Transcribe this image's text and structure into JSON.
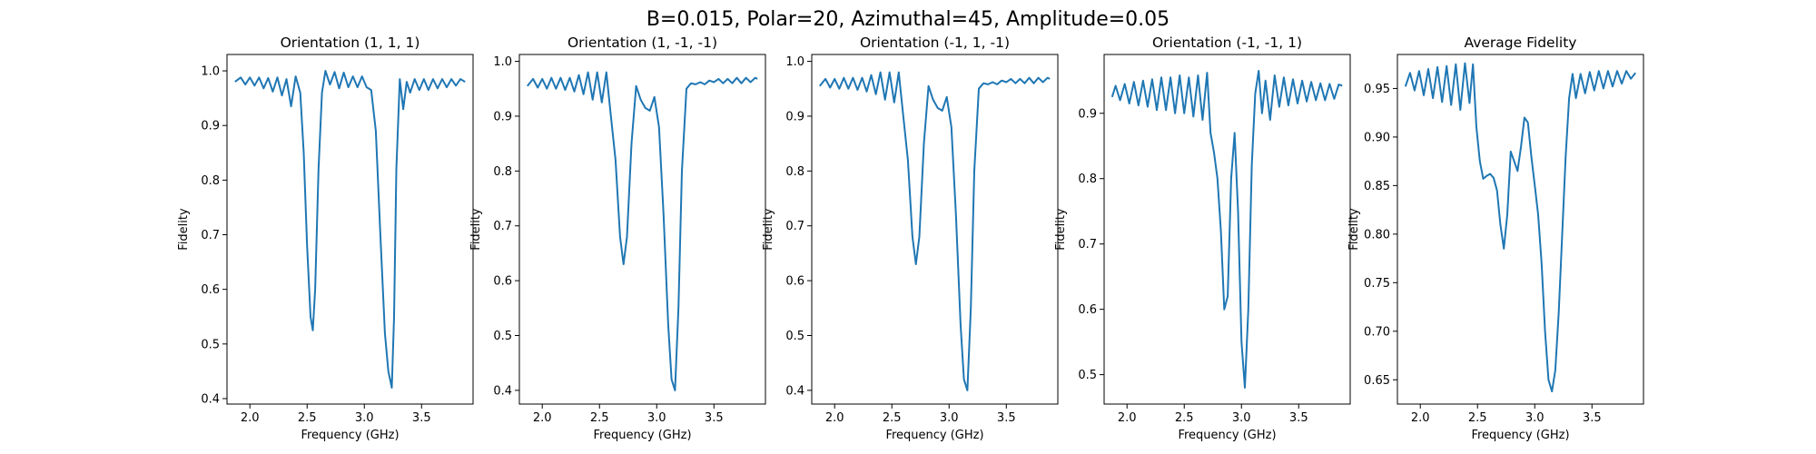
{
  "figure": {
    "suptitle": "B=0.015, Polar=20, Azimuthal=45, Amplitude=0.05"
  },
  "chart_data": [
    {
      "type": "line",
      "title": "Orientation (1, 1, 1)",
      "xlabel": "Frequency (GHz)",
      "ylabel": "Fidelity",
      "xlim": [
        1.8,
        3.95
      ],
      "ylim": [
        0.39,
        1.03
      ],
      "xticks": [
        2.0,
        2.5,
        3.0,
        3.5
      ],
      "yticks": [
        0.4,
        0.5,
        0.6,
        0.7,
        0.8,
        0.9,
        1.0
      ],
      "line_color": "#1f77b4",
      "series": [
        {
          "x": [
            1.87,
            1.92,
            1.96,
            2.0,
            2.04,
            2.08,
            2.12,
            2.16,
            2.2,
            2.24,
            2.28,
            2.32,
            2.36,
            2.4,
            2.44,
            2.47,
            2.5,
            2.53,
            2.55,
            2.57,
            2.6,
            2.63,
            2.66,
            2.7,
            2.74,
            2.78,
            2.82,
            2.86,
            2.9,
            2.94,
            2.98,
            3.02,
            3.06,
            3.1,
            3.14,
            3.18,
            3.21,
            3.24,
            3.26,
            3.28,
            3.31,
            3.34,
            3.37,
            3.4,
            3.44,
            3.48,
            3.52,
            3.56,
            3.6,
            3.64,
            3.68,
            3.72,
            3.76,
            3.8,
            3.84,
            3.88
          ],
          "y": [
            0.98,
            0.988,
            0.975,
            0.988,
            0.973,
            0.988,
            0.968,
            0.987,
            0.962,
            0.988,
            0.955,
            0.985,
            0.935,
            0.99,
            0.96,
            0.85,
            0.68,
            0.55,
            0.525,
            0.6,
            0.82,
            0.96,
            1.0,
            0.975,
            0.998,
            0.968,
            0.997,
            0.97,
            0.99,
            0.97,
            0.99,
            0.97,
            0.965,
            0.89,
            0.7,
            0.52,
            0.45,
            0.42,
            0.55,
            0.82,
            0.985,
            0.93,
            0.98,
            0.96,
            0.985,
            0.965,
            0.985,
            0.965,
            0.985,
            0.968,
            0.985,
            0.97,
            0.985,
            0.973,
            0.985,
            0.98
          ]
        }
      ]
    },
    {
      "type": "line",
      "title": "Orientation (1, -1, -1)",
      "xlabel": "Frequency (GHz)",
      "ylabel": "Fidelity",
      "xlim": [
        1.8,
        3.95
      ],
      "ylim": [
        0.375,
        1.0125
      ],
      "xticks": [
        2.0,
        2.5,
        3.0,
        3.5
      ],
      "yticks": [
        0.4,
        0.5,
        0.6,
        0.7,
        0.8,
        0.9,
        1.0
      ],
      "line_color": "#1f77b4",
      "series": [
        {
          "x": [
            1.87,
            1.92,
            1.96,
            2.0,
            2.04,
            2.08,
            2.12,
            2.16,
            2.2,
            2.24,
            2.28,
            2.32,
            2.36,
            2.4,
            2.44,
            2.48,
            2.52,
            2.56,
            2.6,
            2.64,
            2.68,
            2.71,
            2.74,
            2.78,
            2.82,
            2.86,
            2.9,
            2.94,
            2.98,
            3.02,
            3.06,
            3.1,
            3.13,
            3.16,
            3.19,
            3.22,
            3.26,
            3.3,
            3.34,
            3.38,
            3.42,
            3.46,
            3.5,
            3.54,
            3.58,
            3.62,
            3.66,
            3.7,
            3.74,
            3.78,
            3.82,
            3.86,
            3.88
          ],
          "y": [
            0.955,
            0.968,
            0.952,
            0.968,
            0.95,
            0.97,
            0.95,
            0.97,
            0.948,
            0.97,
            0.945,
            0.975,
            0.94,
            0.98,
            0.93,
            0.98,
            0.925,
            0.98,
            0.9,
            0.82,
            0.68,
            0.63,
            0.68,
            0.85,
            0.955,
            0.93,
            0.915,
            0.91,
            0.935,
            0.88,
            0.72,
            0.52,
            0.42,
            0.4,
            0.55,
            0.8,
            0.95,
            0.96,
            0.958,
            0.962,
            0.958,
            0.965,
            0.962,
            0.968,
            0.96,
            0.968,
            0.96,
            0.97,
            0.96,
            0.97,
            0.962,
            0.97,
            0.968
          ]
        }
      ]
    },
    {
      "type": "line",
      "title": "Orientation (-1, 1, -1)",
      "xlabel": "Frequency (GHz)",
      "ylabel": "Fidelity",
      "xlim": [
        1.8,
        3.95
      ],
      "ylim": [
        0.375,
        1.0125
      ],
      "xticks": [
        2.0,
        2.5,
        3.0,
        3.5
      ],
      "yticks": [
        0.4,
        0.5,
        0.6,
        0.7,
        0.8,
        0.9,
        1.0
      ],
      "line_color": "#1f77b4",
      "series": [
        {
          "x": [
            1.87,
            1.92,
            1.96,
            2.0,
            2.04,
            2.08,
            2.12,
            2.16,
            2.2,
            2.24,
            2.28,
            2.32,
            2.36,
            2.4,
            2.44,
            2.48,
            2.52,
            2.56,
            2.6,
            2.64,
            2.68,
            2.71,
            2.74,
            2.78,
            2.82,
            2.86,
            2.9,
            2.94,
            2.98,
            3.02,
            3.06,
            3.1,
            3.13,
            3.16,
            3.19,
            3.22,
            3.26,
            3.3,
            3.34,
            3.38,
            3.42,
            3.46,
            3.5,
            3.54,
            3.58,
            3.62,
            3.66,
            3.7,
            3.74,
            3.78,
            3.82,
            3.86,
            3.88
          ],
          "y": [
            0.955,
            0.968,
            0.952,
            0.968,
            0.95,
            0.97,
            0.95,
            0.97,
            0.948,
            0.97,
            0.945,
            0.975,
            0.94,
            0.98,
            0.93,
            0.98,
            0.925,
            0.98,
            0.9,
            0.82,
            0.68,
            0.63,
            0.68,
            0.85,
            0.955,
            0.93,
            0.915,
            0.91,
            0.935,
            0.88,
            0.72,
            0.52,
            0.42,
            0.4,
            0.55,
            0.8,
            0.95,
            0.96,
            0.958,
            0.962,
            0.958,
            0.965,
            0.962,
            0.968,
            0.96,
            0.968,
            0.96,
            0.97,
            0.96,
            0.97,
            0.962,
            0.97,
            0.968
          ]
        }
      ]
    },
    {
      "type": "line",
      "title": "Orientation (-1, -1, 1)",
      "xlabel": "Frequency (GHz)",
      "ylabel": "Fidelity",
      "xlim": [
        1.8,
        3.95
      ],
      "ylim": [
        0.455,
        0.99
      ],
      "xticks": [
        2.0,
        2.5,
        3.0,
        3.5
      ],
      "yticks": [
        0.5,
        0.6,
        0.7,
        0.8,
        0.9
      ],
      "line_color": "#1f77b4",
      "series": [
        {
          "x": [
            1.87,
            1.9,
            1.94,
            1.98,
            2.02,
            2.06,
            2.1,
            2.14,
            2.18,
            2.22,
            2.26,
            2.3,
            2.34,
            2.38,
            2.42,
            2.46,
            2.5,
            2.54,
            2.58,
            2.62,
            2.66,
            2.7,
            2.73,
            2.76,
            2.79,
            2.82,
            2.85,
            2.88,
            2.91,
            2.94,
            2.97,
            3.0,
            3.03,
            3.06,
            3.09,
            3.12,
            3.15,
            3.18,
            3.21,
            3.25,
            3.29,
            3.33,
            3.37,
            3.41,
            3.45,
            3.49,
            3.53,
            3.57,
            3.61,
            3.65,
            3.69,
            3.73,
            3.77,
            3.81,
            3.85,
            3.88
          ],
          "y": [
            0.925,
            0.942,
            0.92,
            0.945,
            0.915,
            0.948,
            0.912,
            0.95,
            0.91,
            0.952,
            0.905,
            0.955,
            0.905,
            0.955,
            0.9,
            0.958,
            0.9,
            0.955,
            0.895,
            0.958,
            0.89,
            0.962,
            0.87,
            0.84,
            0.8,
            0.72,
            0.6,
            0.62,
            0.8,
            0.87,
            0.75,
            0.55,
            0.48,
            0.6,
            0.82,
            0.93,
            0.965,
            0.9,
            0.95,
            0.89,
            0.958,
            0.91,
            0.955,
            0.912,
            0.952,
            0.915,
            0.95,
            0.918,
            0.948,
            0.92,
            0.946,
            0.92,
            0.945,
            0.922,
            0.944,
            0.942
          ]
        }
      ]
    },
    {
      "type": "line",
      "title": "Average Fidelity",
      "xlabel": "Frequency (GHz)",
      "ylabel": "Fidelity",
      "xlim": [
        1.8,
        3.95
      ],
      "ylim": [
        0.625,
        0.985
      ],
      "xticks": [
        2.0,
        2.5,
        3.0,
        3.5
      ],
      "yticks": [
        0.65,
        0.7,
        0.75,
        0.8,
        0.85,
        0.9,
        0.95
      ],
      "line_color": "#1f77b4",
      "series": [
        {
          "x": [
            1.87,
            1.91,
            1.95,
            1.99,
            2.03,
            2.07,
            2.11,
            2.15,
            2.19,
            2.23,
            2.27,
            2.31,
            2.35,
            2.39,
            2.43,
            2.46,
            2.49,
            2.52,
            2.55,
            2.58,
            2.61,
            2.64,
            2.67,
            2.7,
            2.73,
            2.76,
            2.79,
            2.82,
            2.85,
            2.88,
            2.91,
            2.94,
            2.97,
            3.0,
            3.03,
            3.06,
            3.09,
            3.12,
            3.15,
            3.18,
            3.21,
            3.24,
            3.27,
            3.3,
            3.33,
            3.36,
            3.4,
            3.44,
            3.48,
            3.52,
            3.56,
            3.6,
            3.64,
            3.68,
            3.72,
            3.76,
            3.8,
            3.84,
            3.88
          ],
          "y": [
            0.952,
            0.966,
            0.948,
            0.968,
            0.943,
            0.97,
            0.94,
            0.972,
            0.936,
            0.973,
            0.933,
            0.975,
            0.928,
            0.976,
            0.935,
            0.975,
            0.91,
            0.875,
            0.857,
            0.86,
            0.862,
            0.858,
            0.845,
            0.81,
            0.785,
            0.82,
            0.885,
            0.875,
            0.865,
            0.89,
            0.92,
            0.915,
            0.88,
            0.85,
            0.82,
            0.77,
            0.7,
            0.65,
            0.638,
            0.66,
            0.72,
            0.8,
            0.88,
            0.94,
            0.965,
            0.94,
            0.965,
            0.945,
            0.967,
            0.948,
            0.968,
            0.95,
            0.968,
            0.952,
            0.968,
            0.955,
            0.968,
            0.96,
            0.966
          ]
        }
      ]
    }
  ]
}
